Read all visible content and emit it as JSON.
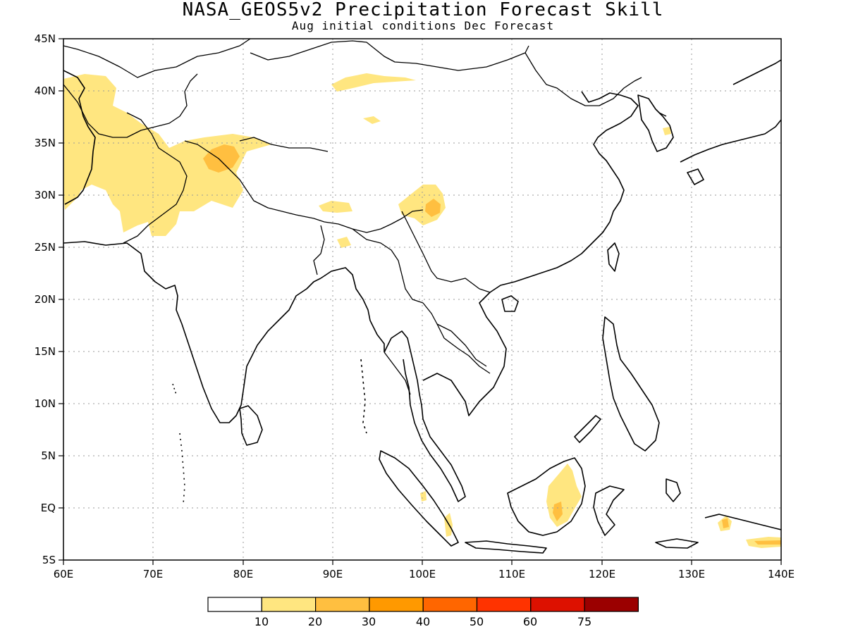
{
  "title": "NASA_GEOS5v2 Precipitation Forecast Skill",
  "subtitle": "Aug initial conditions   Dec Forecast",
  "map": {
    "lon_range": [
      60,
      140
    ],
    "lat_range": [
      -5,
      45
    ],
    "lon_ticks": [
      "60E",
      "70E",
      "80E",
      "90E",
      "100E",
      "110E",
      "120E",
      "130E",
      "140E"
    ],
    "lat_ticks": [
      "5S",
      "EQ",
      "5N",
      "10N",
      "15N",
      "20N",
      "25N",
      "30N",
      "35N",
      "40N",
      "45N"
    ],
    "gridlines": "dotted"
  },
  "colorbar": {
    "labels": [
      "10",
      "20",
      "30",
      "40",
      "50",
      "60",
      "75"
    ],
    "colors": [
      "#ffffff",
      "#ffe680",
      "#ffbf40",
      "#ff9900",
      "#ff6600",
      "#ff3300",
      "#dd1100",
      "#9b0000"
    ]
  },
  "skill_regions": [
    {
      "region": "Afghanistan / Pakistan",
      "level": "10-20"
    },
    {
      "region": "Kashmir / Western Himalaya",
      "level": "20-30"
    },
    {
      "region": "Tarim Basin north",
      "level": "10-20"
    },
    {
      "region": "Eastern Tibet / Yunnan",
      "level": "20-30"
    },
    {
      "region": "Borneo",
      "level": "20-30"
    },
    {
      "region": "New Guinea west",
      "level": "20-30"
    }
  ]
}
